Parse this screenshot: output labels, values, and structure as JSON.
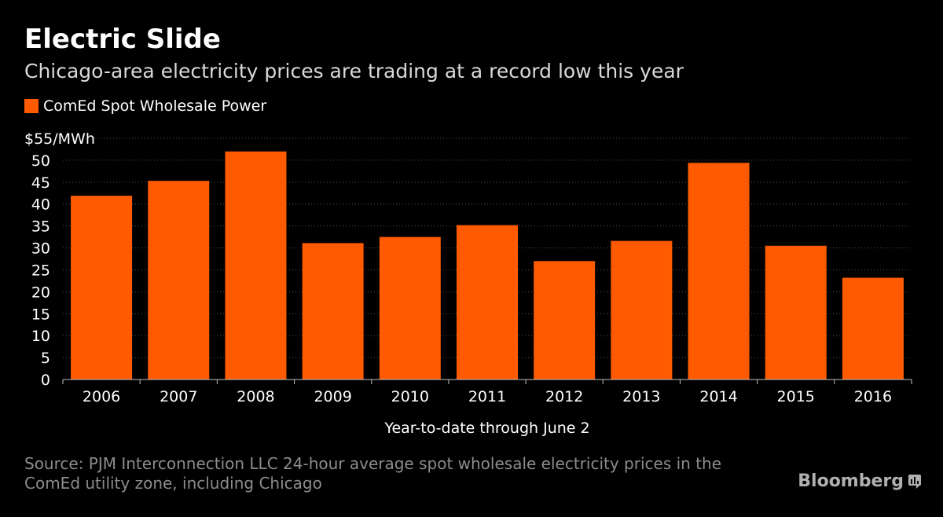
{
  "title": "Electric Slide",
  "subtitle": "Chicago-area electricity prices are trading at a record low this year",
  "legend": {
    "label": "ComEd Spot Wholesale Power",
    "color": "#ff5a00"
  },
  "source": "Source: PJM Interconnection LLC 24-hour average spot wholesale electricity prices in the ComEd utility zone, including Chicago",
  "brand": {
    "name": "Bloomberg",
    "icon": "bloomberg-terminal-icon"
  },
  "chart_data": {
    "type": "bar",
    "title": "Electric Slide",
    "subtitle": "Chicago-area electricity prices are trading at a record low this year",
    "xlabel": "Year-to-date through June 2",
    "ylabel": "$55/MWh",
    "ylim": [
      0,
      55
    ],
    "yticks": [
      0,
      5,
      10,
      15,
      20,
      25,
      30,
      35,
      40,
      45,
      50
    ],
    "grid": true,
    "legend_position": "top-left",
    "categories": [
      "2006",
      "2007",
      "2008",
      "2009",
      "2010",
      "2011",
      "2012",
      "2013",
      "2014",
      "2015",
      "2016"
    ],
    "series": [
      {
        "name": "ComEd Spot Wholesale Power",
        "color": "#ff5a00",
        "values": [
          41.9,
          45.3,
          52.0,
          31.1,
          32.5,
          35.2,
          27.0,
          31.6,
          49.4,
          30.5,
          23.2
        ]
      }
    ]
  }
}
